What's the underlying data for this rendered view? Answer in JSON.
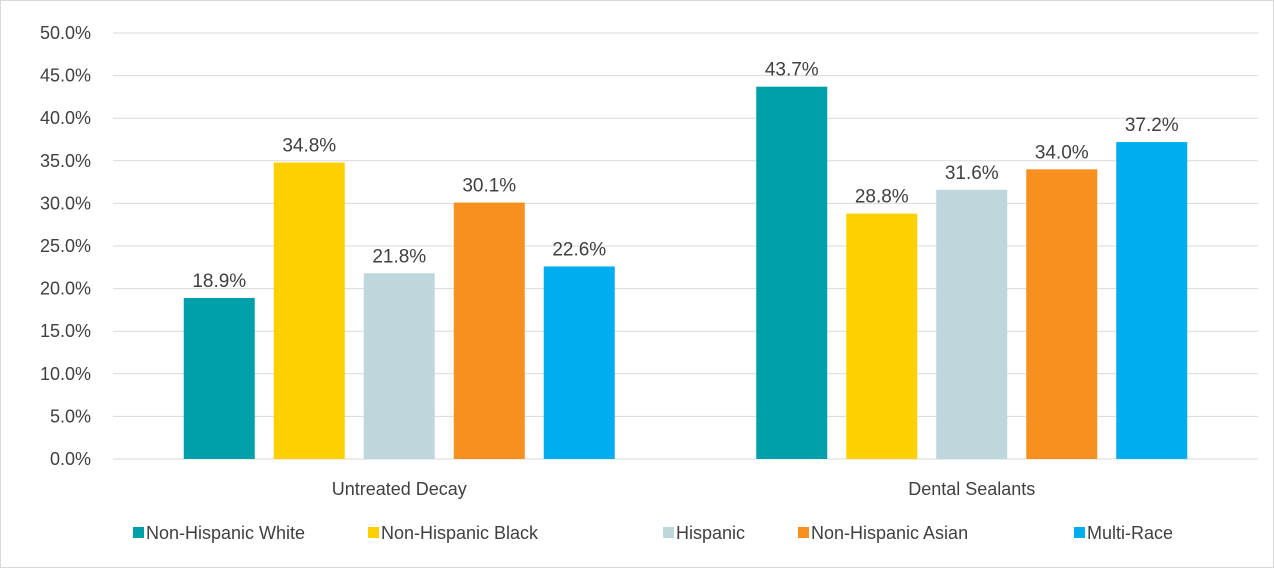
{
  "chart_data": {
    "type": "bar",
    "categories": [
      "Untreated Decay",
      "Dental Sealants"
    ],
    "series": [
      {
        "name": "Non-Hispanic White",
        "values": [
          18.9,
          43.7
        ],
        "color": "#00A0AA"
      },
      {
        "name": "Non-Hispanic Black",
        "values": [
          34.8,
          28.8
        ],
        "color": "#FFD000"
      },
      {
        "name": "Hispanic",
        "values": [
          21.8,
          31.6
        ],
        "color": "#BDD7DC"
      },
      {
        "name": "Non-Hispanic Asian",
        "values": [
          30.1,
          34.0
        ],
        "color": "#F7901E"
      },
      {
        "name": "Multi-Race",
        "values": [
          22.6,
          37.2
        ],
        "color": "#00AEEF"
      }
    ],
    "data_labels": [
      [
        "18.9%",
        "43.7%"
      ],
      [
        "34.8%",
        "28.8%"
      ],
      [
        "21.8%",
        "31.6%"
      ],
      [
        "30.1%",
        "34.0%"
      ],
      [
        "22.6%",
        "37.2%"
      ]
    ],
    "y_ticks": [
      "0.0%",
      "5.0%",
      "10.0%",
      "15.0%",
      "20.0%",
      "25.0%",
      "30.0%",
      "35.0%",
      "40.0%",
      "45.0%",
      "50.0%"
    ],
    "ylim": [
      0,
      50
    ],
    "title": "",
    "xlabel": "",
    "ylabel": "",
    "grid": true,
    "legend_position": "bottom",
    "gridline_color": "#d9d9d9",
    "text_color": "#404040"
  }
}
